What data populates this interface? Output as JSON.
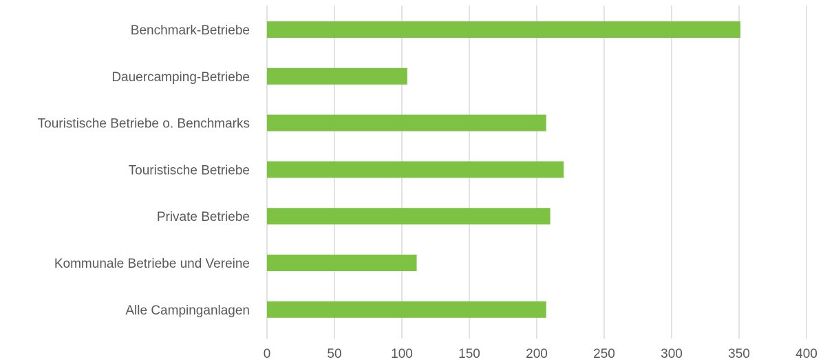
{
  "chart_data": {
    "type": "bar",
    "orientation": "horizontal",
    "title": "",
    "xlabel": "",
    "ylabel": "",
    "categories": [
      "Benchmark-Betriebe",
      "Dauercamping-Betriebe",
      "Touristische Betriebe o. Benchmarks",
      "Touristische Betriebe",
      "Private Betriebe",
      "Kommunale Betriebe und Vereine",
      "Alle Campinganlagen"
    ],
    "values": [
      351,
      104,
      207,
      220,
      210,
      111,
      207
    ],
    "xlim": [
      0,
      400
    ],
    "xticks": [
      0,
      50,
      100,
      150,
      200,
      250,
      300,
      350,
      400
    ],
    "grid": "vertical",
    "legend": "none",
    "colors": {
      "bar": "#7dc242",
      "grid": "#d9d9d9",
      "text": "#595959"
    }
  }
}
